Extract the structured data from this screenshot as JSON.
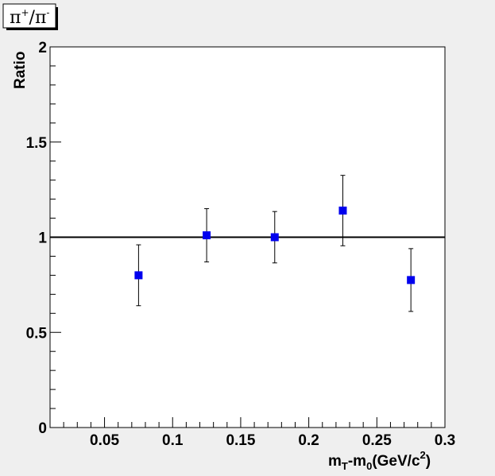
{
  "chart_data": {
    "type": "scatter",
    "title": "π+/π-",
    "title_parts": {
      "base1": "π",
      "sup1": "+",
      "slash": "/",
      "base2": "π",
      "sup2": "-"
    },
    "xlabel": "mT-m0(GeV/c2)",
    "xlabel_parts": {
      "m1": "m",
      "sub1": "T",
      "dash": "-m",
      "sub2": "0",
      "mid": "(GeV/c",
      "sup": "2",
      "end": ")"
    },
    "ylabel": "Ratio",
    "xlim": [
      0.01,
      0.3
    ],
    "ylim": [
      0,
      2
    ],
    "x_ticks": [
      "0.05",
      "0.1",
      "0.15",
      "0.2",
      "0.25",
      "0.3"
    ],
    "y_ticks": [
      "0",
      "0.5",
      "1",
      "1.5",
      "2"
    ],
    "reference_line_y": 1,
    "marker_color": "#0000ee",
    "series": [
      {
        "points": [
          {
            "x": 0.075,
            "y": 0.8,
            "err": 0.16
          },
          {
            "x": 0.125,
            "y": 1.01,
            "err": 0.14
          },
          {
            "x": 0.175,
            "y": 1.0,
            "err": 0.135
          },
          {
            "x": 0.225,
            "y": 1.14,
            "err": 0.185
          },
          {
            "x": 0.275,
            "y": 0.775,
            "err": 0.165
          }
        ]
      }
    ],
    "grid": false,
    "legend": "none"
  }
}
